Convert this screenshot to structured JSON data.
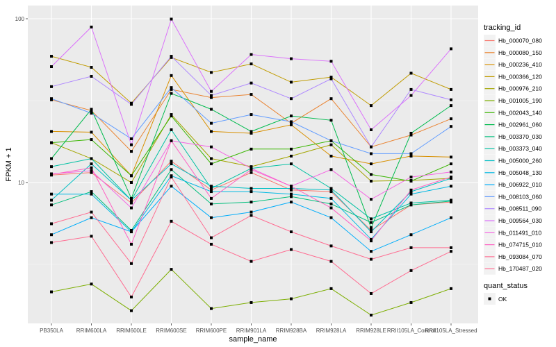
{
  "chart_data": {
    "type": "line",
    "title": "",
    "xlabel": "sample_name",
    "ylabel": "FPKM + 1",
    "yscale": "log10",
    "ylim": [
      1.4,
      105
    ],
    "yticks": [
      10,
      100
    ],
    "ytick_labels": [
      "10",
      "100"
    ],
    "grid": true,
    "categories": [
      "PB350LA",
      "RRIM600LA",
      "RRIM600LE",
      "RRIM600SE",
      "RRIM600PE",
      "RRIM901LA",
      "RRIM928BA",
      "RRIM928LA",
      "RRIM928LE",
      "RRII105LA_Control",
      "RRII105LA_Stressed"
    ],
    "legend": {
      "title": "tracking_id",
      "position": "right",
      "shape_legend_title": "quant_status",
      "shape_legend_items": [
        "OK"
      ]
    },
    "series": [
      {
        "name": "Hb_000070_080",
        "color": "#F8766D",
        "values": [
          11.1,
          11.5,
          7.5,
          13.5,
          9.0,
          11.5,
          9.0,
          8.8,
          5.1,
          7.3,
          7.6
        ]
      },
      {
        "name": "Hb_000080_150",
        "color": "#EA8331",
        "values": [
          32.0,
          27.5,
          15.5,
          37.0,
          33.0,
          34.5,
          23.0,
          32.5,
          16.5,
          19.5,
          24.5
        ]
      },
      {
        "name": "Hb_000236_410",
        "color": "#D89000",
        "values": [
          20.5,
          20.3,
          11.0,
          45.0,
          20.5,
          20.0,
          22.5,
          14.5,
          13.0,
          14.5,
          14.3
        ]
      },
      {
        "name": "Hb_000366_120",
        "color": "#C09B00",
        "values": [
          59.0,
          50.5,
          30.5,
          58.0,
          47.0,
          53.0,
          41.0,
          44.0,
          29.5,
          46.5,
          37.0
        ]
      },
      {
        "name": "Hb_000976_210",
        "color": "#A3A500",
        "values": [
          17.5,
          14.0,
          10.0,
          26.0,
          14.0,
          12.5,
          14.5,
          17.0,
          10.2,
          10.3,
          10.6
        ]
      },
      {
        "name": "Hb_001005_190",
        "color": "#7CAE00",
        "values": [
          2.15,
          2.4,
          1.65,
          2.95,
          1.7,
          1.85,
          1.95,
          2.25,
          1.55,
          1.85,
          2.25
        ]
      },
      {
        "name": "Hb_002043_140",
        "color": "#39B600",
        "values": [
          17.5,
          18.3,
          11.0,
          25.5,
          13.0,
          16.0,
          16.0,
          18.0,
          11.2,
          10.2,
          13.0
        ]
      },
      {
        "name": "Hb_002961_060",
        "color": "#00BB4E",
        "values": [
          14.0,
          28.0,
          8.0,
          35.0,
          28.0,
          20.5,
          25.5,
          24.0,
          5.3,
          20.0,
          29.5
        ]
      },
      {
        "name": "Hb_003370_030",
        "color": "#00BF7D",
        "values": [
          7.3,
          8.8,
          5.1,
          12.0,
          7.4,
          7.6,
          8.2,
          7.4,
          5.7,
          7.3,
          7.7
        ]
      },
      {
        "name": "Hb_003373_040",
        "color": "#00C1A3",
        "values": [
          12.5,
          14.0,
          7.8,
          21.0,
          9.2,
          12.2,
          13.0,
          9.2,
          6.0,
          7.5,
          7.8
        ]
      },
      {
        "name": "Hb_005000_260",
        "color": "#00BFC4",
        "values": [
          7.8,
          13.0,
          7.8,
          13.0,
          9.5,
          9.2,
          9.2,
          9.0,
          5.0,
          8.8,
          10.6
        ]
      },
      {
        "name": "Hb_005048_130",
        "color": "#00B9E3",
        "values": [
          8.5,
          8.5,
          5.0,
          11.0,
          8.8,
          8.8,
          8.5,
          8.0,
          4.5,
          8.5,
          9.5
        ]
      },
      {
        "name": "Hb_006922_010",
        "color": "#00ADFA",
        "values": [
          4.8,
          6.1,
          5.0,
          9.5,
          6.1,
          6.6,
          7.6,
          6.1,
          3.8,
          4.8,
          6.1
        ]
      },
      {
        "name": "Hb_008103_060",
        "color": "#619CFF",
        "values": [
          32.5,
          26.5,
          18.5,
          38.0,
          23.0,
          26.0,
          23.5,
          18.0,
          15.0,
          15.0,
          22.0
        ]
      },
      {
        "name": "Hb_008511_090",
        "color": "#AE87FF",
        "values": [
          38.5,
          44.5,
          30.0,
          59.0,
          34.0,
          40.5,
          32.5,
          43.0,
          16.5,
          37.0,
          32.0
        ]
      },
      {
        "name": "Hb_009564_030",
        "color": "#DB72FB",
        "values": [
          51.0,
          89.0,
          17.0,
          99.5,
          36.0,
          60.5,
          57.0,
          55.0,
          21.0,
          34.0,
          65.5
        ]
      },
      {
        "name": "Hb_011491_010",
        "color": "#F564E3",
        "values": [
          11.3,
          11.8,
          7.0,
          18.0,
          16.5,
          12.2,
          9.5,
          12.0,
          7.9,
          10.8,
          11.6
        ]
      },
      {
        "name": "Hb_074715_010",
        "color": "#FF61C3",
        "values": [
          11.2,
          12.3,
          4.2,
          18.0,
          8.0,
          12.0,
          9.5,
          7.0,
          4.4,
          9.0,
          10.8
        ]
      },
      {
        "name": "Hb_093084_070",
        "color": "#FF6C91",
        "values": [
          5.6,
          6.6,
          3.2,
          10.8,
          4.6,
          6.3,
          5.0,
          4.1,
          3.4,
          4.0,
          4.0
        ]
      },
      {
        "name": "Hb_170487_020",
        "color": "#FF6C91",
        "values": [
          4.3,
          4.7,
          2.0,
          5.8,
          4.2,
          3.3,
          3.9,
          3.3,
          2.1,
          2.9,
          3.8
        ]
      }
    ]
  }
}
